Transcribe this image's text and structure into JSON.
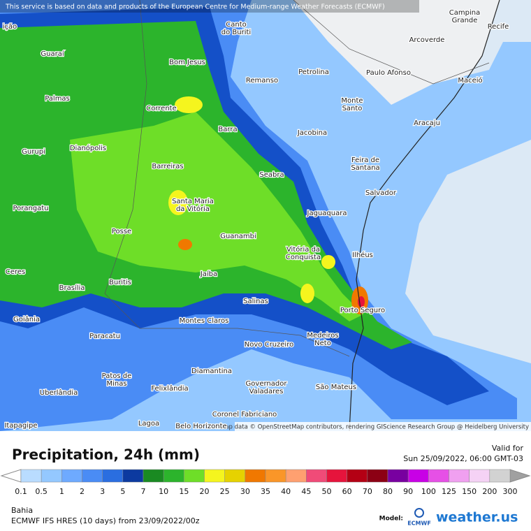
{
  "header": {
    "notice": "This service is based on data and products of the European Centre for Medium-range Weather Forecasts (ECMWF)"
  },
  "map": {
    "places": [
      [
        "ição"
      ],
      [
        "Campina",
        "Grande"
      ],
      [
        "Recife"
      ],
      [
        "Canto",
        "do Buriti"
      ],
      [
        "Arcoverde"
      ],
      [
        "Guaraí"
      ],
      [
        "Bom Jesus"
      ],
      [
        "Petrolina"
      ],
      [
        "Paulo Afonso"
      ],
      [
        "Remanso"
      ],
      [
        "Maceió"
      ],
      [
        "Palmas"
      ],
      [
        "Monte",
        "Santo"
      ],
      [
        "Corrente"
      ],
      [
        "Aracaju"
      ],
      [
        "Barra"
      ],
      [
        "Jacobina"
      ],
      [
        "Dianópolis"
      ],
      [
        "Gurupi"
      ],
      [
        "Feira de",
        "Santana"
      ],
      [
        "Barreiras"
      ],
      [
        "Seabra"
      ],
      [
        "Salvador"
      ],
      [
        "Santa Maria",
        "da Vitória"
      ],
      [
        "Porangatu"
      ],
      [
        "Jaguaquara"
      ],
      [
        "Posse"
      ],
      [
        "Guanambi"
      ],
      [
        "Vitória da",
        "Conquista"
      ],
      [
        "Ilhéus"
      ],
      [
        "Ceres"
      ],
      [
        "Jaíba"
      ],
      [
        "Buritis"
      ],
      [
        "Brasília"
      ],
      [
        "Salinas"
      ],
      [
        "Porto Seguro"
      ],
      [
        "Goiânia"
      ],
      [
        "Montes Claros"
      ],
      [
        "Medeiros",
        "Neto"
      ],
      [
        "Paracatu"
      ],
      [
        "Novo Cruzeiro"
      ],
      [
        "Diamantina"
      ],
      [
        "Patos de",
        "Minas"
      ],
      [
        "Governador",
        "Valadares"
      ],
      [
        "São Mateus"
      ],
      [
        "Felixlândia"
      ],
      [
        "Uberlândia"
      ],
      [
        "Coronel Fabriciano"
      ],
      [
        "Lagoa"
      ],
      [
        "Belo Horizonte"
      ],
      [
        "Itapagipe"
      ]
    ],
    "attribution": "Map data © OpenStreetMap contributors, rendering GIScience Research Group @ Heidelberg University"
  },
  "legend": {
    "title": "Precipitation, 24h (mm)",
    "valid_label": "Valid for",
    "valid_time": "Sun 25/09/2022, 06:00 GMT-03",
    "ticks": [
      0.1,
      0.5,
      1,
      2,
      3,
      5,
      7,
      10,
      15,
      20,
      25,
      30,
      35,
      40,
      45,
      50,
      60,
      70,
      80,
      90,
      100,
      125,
      150,
      200,
      300
    ],
    "colors": [
      "#b9dcff",
      "#94c8ff",
      "#6eaaff",
      "#4a8cf5",
      "#2a6ee0",
      "#0c3aa0",
      "#1a8a22",
      "#2cb42c",
      "#6ede28",
      "#f5f51e",
      "#e6d200",
      "#f07800",
      "#fa9628",
      "#ffa070",
      "#f04b78",
      "#e6143c",
      "#b40014",
      "#8c0014",
      "#7800a0",
      "#c800e6",
      "#e650e6",
      "#f0a0f0",
      "#f5d2f5",
      "#d2d2d2"
    ]
  },
  "footer": {
    "region": "Bahia",
    "model_run": "ECMWF IFS HRES (10 days) from 23/09/2022/00z",
    "model_label": "Model:",
    "model_logo": "ECMWF",
    "brand": "weather.us"
  }
}
